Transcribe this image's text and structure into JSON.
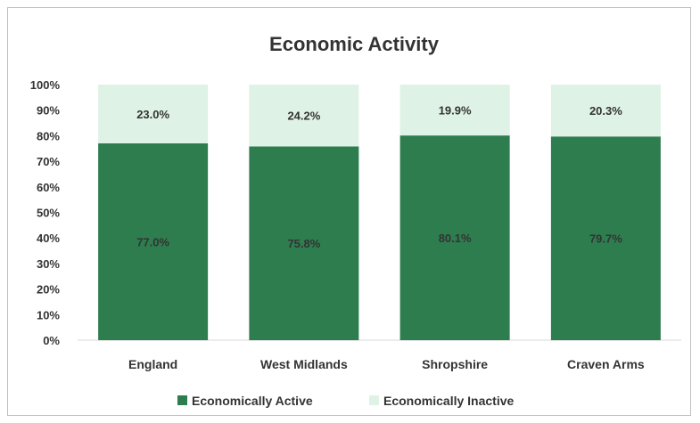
{
  "chart_data": {
    "type": "bar",
    "stacked": true,
    "title": "Economic Activity",
    "categories": [
      "England",
      "West Midlands",
      "Shropshire",
      "Craven Arms"
    ],
    "series": [
      {
        "name": "Economically Active",
        "values": [
          77.0,
          75.8,
          80.1,
          79.7
        ],
        "labels": [
          "77.0%",
          "75.8%",
          "80.1%",
          "79.7%"
        ],
        "color": "#2e7d4f"
      },
      {
        "name": "Economically Inactive",
        "values": [
          23.0,
          24.2,
          19.9,
          20.3
        ],
        "labels": [
          "23.0%",
          "24.2%",
          "19.9%",
          "20.3%"
        ],
        "color": "#dff2e6"
      }
    ],
    "ylim": [
      0,
      100
    ],
    "yticks": [
      "0%",
      "10%",
      "20%",
      "30%",
      "40%",
      "50%",
      "60%",
      "70%",
      "80%",
      "90%",
      "100%"
    ],
    "grid": false,
    "legend_position": "bottom"
  }
}
